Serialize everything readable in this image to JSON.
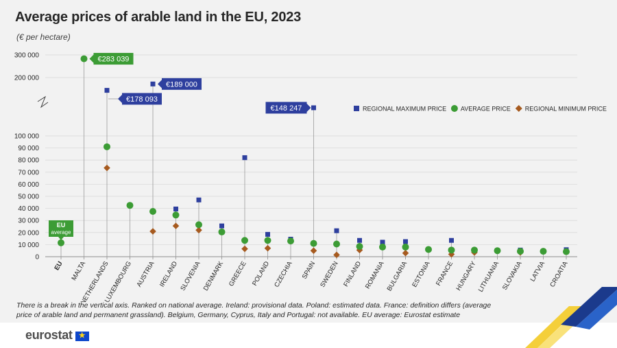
{
  "header": {
    "title": "Average prices of arable land in the EU, 2023",
    "subtitle": "(€ per hectare)"
  },
  "footnote": "There is a break in the vertical axis. Ranked on national average. Ireland: provisional data. Poland: estimated data. France: definition differs (average price of arable land and permanent grassland). Belgium, Germany, Cyprus, Italy and Portugal: not available. EU average: Eurostat estimate",
  "brand": {
    "name": "eurostat",
    "flag_icon": "eu-flag-icon"
  },
  "colors": {
    "max": "#2e3f9e",
    "avg": "#3c9c35",
    "min": "#a65a1f",
    "label_blue": "#2e3f9e",
    "label_green": "#3c9c35",
    "panel": "#f2f2f2"
  },
  "chart_data": {
    "type": "scatter",
    "categories": [
      "EU",
      "MALTA",
      "NETHERLANDS",
      "LUXEMBOURG",
      "AUSTRIA",
      "IRELAND",
      "SLOVENIA",
      "DENMARK",
      "GREECE",
      "POLAND",
      "CZECHIA",
      "SPAIN",
      "SWEDEN",
      "FINLAND",
      "ROMANIA",
      "BULGARIA",
      "ESTONIA",
      "FRANCE",
      "HUNGARY",
      "LITHUANIA",
      "SLOVAKIA",
      "LATVIA",
      "CROATIA"
    ],
    "series": [
      {
        "name": "REGIONAL MAXIMUM PRICE",
        "marker": "square",
        "values": [
          null,
          null,
          178093,
          null,
          189000,
          39500,
          47000,
          25500,
          82000,
          18500,
          14500,
          148247,
          21500,
          13500,
          12000,
          12500,
          null,
          13500,
          null,
          null,
          5500,
          null,
          5800
        ]
      },
      {
        "name": "AVERAGE PRICE",
        "marker": "circle",
        "values": [
          11500,
          283039,
          91000,
          42500,
          37500,
          34500,
          26500,
          20500,
          13500,
          13500,
          13000,
          11000,
          10500,
          8500,
          8000,
          8000,
          6000,
          5500,
          5500,
          5000,
          4500,
          4500,
          4200
        ]
      },
      {
        "name": "REGIONAL MINIMUM PRICE",
        "marker": "diamond",
        "values": [
          null,
          null,
          73500,
          null,
          21000,
          25500,
          22000,
          null,
          6500,
          7000,
          null,
          5000,
          1500,
          5500,
          null,
          3000,
          null,
          2000,
          3500,
          null,
          3500,
          null,
          null
        ]
      }
    ],
    "y_ticks_lower": [
      "0",
      "10 000",
      "20 000",
      "30 000",
      "40 000",
      "50 000",
      "60 000",
      "70 000",
      "80 000",
      "90 000",
      "100 000"
    ],
    "y_ticks_upper": [
      "200 000",
      "300 000"
    ],
    "ylim_lower": [
      0,
      100000
    ],
    "ylim_upper": [
      200000,
      300000
    ],
    "axis_break": true,
    "value_labels": [
      {
        "text": "€283 039",
        "category": "MALTA",
        "series": "AVERAGE PRICE"
      },
      {
        "text": "€178 093",
        "category": "NETHERLANDS",
        "series": "REGIONAL MAXIMUM PRICE"
      },
      {
        "text": "€189 000",
        "category": "AUSTRIA",
        "series": "REGIONAL MAXIMUM PRICE"
      },
      {
        "text": "€148 247",
        "category": "SPAIN",
        "series": "REGIONAL MAXIMUM PRICE"
      }
    ],
    "eu_label": [
      "EU",
      "average"
    ],
    "legend_position": "right"
  }
}
